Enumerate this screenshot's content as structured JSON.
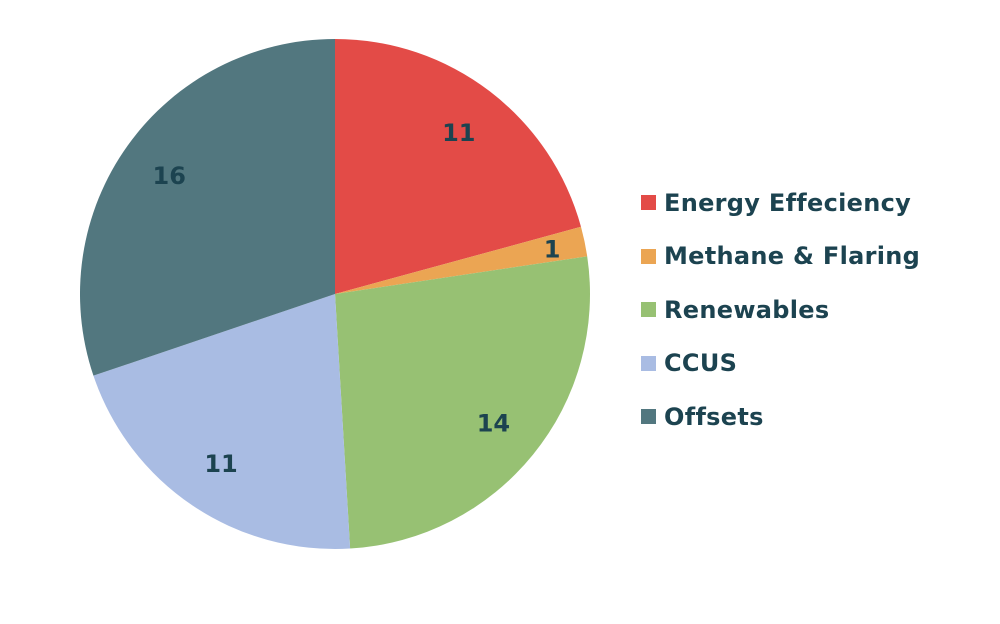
{
  "chart_data": {
    "type": "pie",
    "categories": [
      "Energy Effeciency",
      "Methane & Flaring",
      "Renewables",
      "CCUS",
      "Offsets"
    ],
    "values": [
      11,
      1,
      14,
      11,
      16
    ],
    "colors": [
      "#E34B47",
      "#EBA553",
      "#97C173",
      "#A9BCE3",
      "#52777F"
    ],
    "data_labels": [
      "11",
      "1",
      "14",
      "11",
      "16"
    ],
    "start_angle": "12 o'clock, clockwise",
    "legend_position": "right",
    "label_color": "#1C4350"
  }
}
